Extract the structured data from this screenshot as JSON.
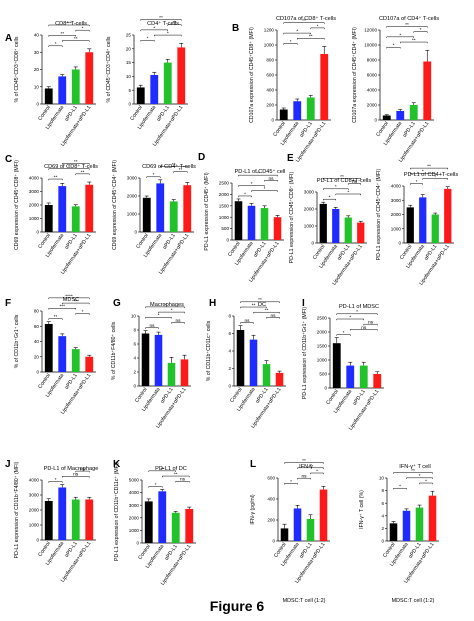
{
  "figure_title": "Figure 6",
  "colors": {
    "control": "#000000",
    "lipofermata": "#1f2bff",
    "apdl1": "#22c22a",
    "combo": "#ff1a1a"
  },
  "chart_data": [
    {
      "id": "A1",
      "panel": "A",
      "type": "bar",
      "title": "CD8⁺ T-cells",
      "ylabel": "% of CD45⁺CD3⁺CD8⁺ cells",
      "ylim": [
        0,
        40
      ],
      "yticks": [
        0,
        10,
        20,
        30,
        40
      ],
      "categories": [
        "Control",
        "Lipofermata",
        "αPD-L1",
        "Lipofermata+αPD-L1"
      ],
      "values": [
        9,
        16,
        20,
        30
      ],
      "errors": [
        1,
        1,
        1.5,
        2
      ],
      "sig": [
        {
          "from": 0,
          "to": 1,
          "label": "*"
        },
        {
          "from": 1,
          "to": 3,
          "label": "**"
        },
        {
          "from": 0,
          "to": 2,
          "label": "**"
        },
        {
          "from": 2,
          "to": 3,
          "label": "*"
        },
        {
          "from": 0,
          "to": 3,
          "label": "***"
        }
      ]
    },
    {
      "id": "A2",
      "panel": "",
      "type": "bar",
      "title": "CD4⁺ T-cells",
      "ylabel": "% of CD45⁺CD3⁺CD4⁺ cells",
      "ylim": [
        0,
        25
      ],
      "yticks": [
        0,
        5,
        10,
        15,
        20,
        25
      ],
      "categories": [
        "Control",
        "Lipofermata",
        "αPD-L1",
        "Lipofermata+αPD-L1"
      ],
      "values": [
        6,
        10.5,
        15,
        20.5
      ],
      "errors": [
        0.8,
        1,
        1.2,
        1.5
      ],
      "sig": [
        {
          "from": 0,
          "to": 1,
          "label": "*"
        },
        {
          "from": 1,
          "to": 3,
          "label": "*"
        },
        {
          "from": 0,
          "to": 2,
          "label": "*"
        },
        {
          "from": 2,
          "to": 3,
          "label": "**"
        },
        {
          "from": 0,
          "to": 3,
          "label": "**"
        }
      ]
    },
    {
      "id": "B1",
      "panel": "B",
      "type": "bar",
      "title": "CD107a of CD8⁺ T-cells",
      "ylabel": "CD107a expression of CD45⁺CD8⁺ (MFI)",
      "ylim": [
        0,
        1200
      ],
      "yticks": [
        0,
        200,
        400,
        600,
        800,
        1000,
        1200
      ],
      "categories": [
        "Control",
        "Lipofermata",
        "αPD-L1",
        "Lipofermata+αPD-L1"
      ],
      "values": [
        140,
        250,
        300,
        880
      ],
      "errors": [
        20,
        30,
        30,
        100
      ],
      "sig": [
        {
          "from": 0,
          "to": 1,
          "label": "*"
        },
        {
          "from": 1,
          "to": 3,
          "label": "**"
        },
        {
          "from": 0,
          "to": 2,
          "label": "*"
        },
        {
          "from": 2,
          "to": 3,
          "label": "*"
        },
        {
          "from": 0,
          "to": 3,
          "label": "**"
        }
      ]
    },
    {
      "id": "B2",
      "panel": "",
      "type": "bar",
      "title": "CD107a of CD4⁺ T-cells",
      "ylabel": "CD107a expression of CD45⁺CD4⁺ (MFI)",
      "ylim": [
        0,
        12000
      ],
      "yticks": [
        0,
        2000,
        4000,
        6000,
        8000,
        10000,
        12000
      ],
      "categories": [
        "Control",
        "Lipofermata",
        "αPD-L1",
        "Lipofermata+αPD-L1"
      ],
      "values": [
        600,
        1200,
        2000,
        7800
      ],
      "errors": [
        100,
        200,
        300,
        1500
      ],
      "sig": [
        {
          "from": 0,
          "to": 1,
          "label": "*"
        },
        {
          "from": 1,
          "to": 3,
          "label": "**"
        },
        {
          "from": 0,
          "to": 2,
          "label": "*"
        },
        {
          "from": 2,
          "to": 3,
          "label": "*"
        },
        {
          "from": 0,
          "to": 3,
          "label": "**"
        }
      ]
    },
    {
      "id": "C1",
      "panel": "C",
      "type": "bar",
      "title": "CD69 of CD8⁺ T-cells",
      "ylabel": "CD69 expression of CD45⁺CD8⁺ (MFI)",
      "ylim": [
        0,
        4000
      ],
      "yticks": [
        0,
        1000,
        2000,
        3000,
        4000
      ],
      "categories": [
        "Control",
        "Lipofermata",
        "αPD-L1",
        "Lipofermata+αPD-L1"
      ],
      "values": [
        2000,
        3400,
        1900,
        3500
      ],
      "errors": [
        150,
        200,
        120,
        200
      ],
      "sig": [
        {
          "from": 0,
          "to": 1,
          "label": "**"
        },
        {
          "from": 2,
          "to": 3,
          "label": "**"
        },
        {
          "from": 0,
          "to": 3,
          "label": "*"
        },
        {
          "from": 1,
          "to": 3,
          "label": "**"
        }
      ]
    },
    {
      "id": "C2",
      "panel": "",
      "type": "bar",
      "title": "CD69 of CD4⁺ T-cells",
      "ylabel": "CD69 expression of CD45⁺CD4⁺ (MFI)",
      "ylim": [
        0,
        3000
      ],
      "yticks": [
        0,
        1000,
        2000,
        3000
      ],
      "categories": [
        "Control",
        "Lipofermata",
        "αPD-L1",
        "Lipofermata+αPD-L1"
      ],
      "values": [
        1900,
        2700,
        1700,
        2600
      ],
      "errors": [
        100,
        200,
        100,
        150
      ],
      "sig": [
        {
          "from": 0,
          "to": 1,
          "label": "*"
        },
        {
          "from": 2,
          "to": 3,
          "label": "**"
        },
        {
          "from": 1,
          "to": 3,
          "label": "**"
        }
      ]
    },
    {
      "id": "D",
      "panel": "D",
      "type": "bar",
      "title": "PD-L1 of CD45⁺ cell",
      "ylabel": "PD-L1 expression of CD45⁺ (MFI)",
      "ylim": [
        0,
        2500
      ],
      "yticks": [
        0,
        500,
        1000,
        1500,
        2000,
        2500
      ],
      "categories": [
        "Control",
        "Lipofermata",
        "αPD-L1",
        "Lipofermata+αPD-L1"
      ],
      "values": [
        1700,
        1500,
        1400,
        1000
      ],
      "errors": [
        100,
        100,
        100,
        80
      ],
      "sig": [
        {
          "from": 0,
          "to": 1,
          "label": "*"
        },
        {
          "from": 1,
          "to": 3,
          "label": "*"
        },
        {
          "from": 0,
          "to": 2,
          "label": "*"
        },
        {
          "from": 2,
          "to": 3,
          "label": "ns"
        },
        {
          "from": 0,
          "to": 3,
          "label": "**"
        }
      ]
    },
    {
      "id": "E1",
      "panel": "E",
      "type": "bar",
      "title": "PD-L1 of CD8+T-cells",
      "ylabel": "PD-L1 expression of CD45⁺CD8⁺ (MFI)",
      "ylim": [
        0,
        3000
      ],
      "yticks": [
        0,
        1000,
        2000,
        3000
      ],
      "categories": [
        "Control",
        "Lipofermata",
        "αPD-L1",
        "Lipofermata+αPD-L1"
      ],
      "values": [
        2300,
        2000,
        1500,
        1200
      ],
      "errors": [
        100,
        100,
        100,
        80
      ],
      "sig": [
        {
          "from": 0,
          "to": 1,
          "label": "*"
        },
        {
          "from": 1,
          "to": 3,
          "label": "*"
        },
        {
          "from": 0,
          "to": 2,
          "label": "*"
        },
        {
          "from": 2,
          "to": 3,
          "label": "ns"
        },
        {
          "from": 0,
          "to": 3,
          "label": "**"
        }
      ]
    },
    {
      "id": "E2",
      "panel": "",
      "type": "bar",
      "title": "PD-L1 of CD4+T-cells",
      "ylabel": "PD-L1 expression of CD45⁺CD4⁺ (MFI)",
      "ylim": [
        0,
        4000
      ],
      "yticks": [
        0,
        1000,
        2000,
        3000,
        4000
      ],
      "categories": [
        "Control",
        "Lipofermata",
        "αPD-L1",
        "Lipofermata+αPD-L1"
      ],
      "values": [
        2500,
        3200,
        2000,
        3800
      ],
      "errors": [
        150,
        200,
        100,
        150
      ],
      "sig": [
        {
          "from": 0,
          "to": 1,
          "label": "*"
        },
        {
          "from": 1,
          "to": 3,
          "label": "*"
        },
        {
          "from": 0,
          "to": 2,
          "label": "*"
        },
        {
          "from": 0,
          "to": 3,
          "label": "**"
        }
      ]
    },
    {
      "id": "F",
      "panel": "F",
      "type": "bar",
      "title": "MDSC",
      "ylabel": "% of CD11b⁺Gr1⁺ cells",
      "ylim": [
        0,
        80
      ],
      "yticks": [
        0,
        20,
        40,
        60,
        80
      ],
      "categories": [
        "Control",
        "Lipofermata",
        "αPD-L1",
        "Lipofermata+αPD-L1"
      ],
      "values": [
        63,
        47,
        30,
        20
      ],
      "errors": [
        3,
        3,
        2,
        2
      ],
      "sig": [
        {
          "from": 0,
          "to": 1,
          "label": "**"
        },
        {
          "from": 2,
          "to": 3,
          "label": "*"
        },
        {
          "from": 0,
          "to": 2,
          "label": "***"
        },
        {
          "from": 1,
          "to": 3,
          "label": "**"
        },
        {
          "from": 0,
          "to": 3,
          "label": "****"
        }
      ]
    },
    {
      "id": "G",
      "panel": "G",
      "type": "bar",
      "title": "Macrophages",
      "ylabel": "% of CD11b⁺F4/80⁺ cells",
      "ylim": [
        0,
        10
      ],
      "yticks": [
        0,
        2,
        4,
        6,
        8,
        10
      ],
      "categories": [
        "Control",
        "Lipofermata",
        "αPD-L1",
        "Lipofermata+αPD-L1"
      ],
      "values": [
        7.5,
        7.3,
        3.3,
        3.8
      ],
      "errors": [
        0.4,
        0.4,
        0.8,
        0.6
      ],
      "sig": [
        {
          "from": 0,
          "to": 1,
          "label": "ns"
        },
        {
          "from": 2,
          "to": 3,
          "label": "ns"
        },
        {
          "from": 0,
          "to": 2,
          "label": "*"
        },
        {
          "from": 1,
          "to": 3,
          "label": "*"
        },
        {
          "from": 0,
          "to": 3,
          "label": "*"
        }
      ]
    },
    {
      "id": "H",
      "panel": "H",
      "type": "bar",
      "title": "DC",
      "ylabel": "% of CD11b⁺CD11c⁺ cells",
      "ylim": [
        0,
        8
      ],
      "yticks": [
        0,
        2,
        4,
        6,
        8
      ],
      "categories": [
        "Control",
        "Lipofermata",
        "αPD-L1",
        "Lipofermata+αPD-L1"
      ],
      "values": [
        6.4,
        5.3,
        2.5,
        1.5
      ],
      "errors": [
        0.5,
        0.5,
        0.4,
        0.2
      ],
      "sig": [
        {
          "from": 0,
          "to": 1,
          "label": "ns"
        },
        {
          "from": 2,
          "to": 3,
          "label": "ns"
        },
        {
          "from": 1,
          "to": 3,
          "label": "**"
        },
        {
          "from": 0,
          "to": 2,
          "label": "**"
        },
        {
          "from": 0,
          "to": 3,
          "label": "**"
        }
      ]
    },
    {
      "id": "I",
      "panel": "I",
      "type": "bar",
      "title": "PD-L1 of MDSC",
      "ylabel": "PD-L1 expression of CD11b⁺Gr1⁺ (MFI)",
      "ylim": [
        0,
        2500
      ],
      "yticks": [
        0,
        500,
        1000,
        1500,
        2000,
        2500
      ],
      "categories": [
        "Control",
        "Lipofermata",
        "αPD-L1",
        "Lipofermata+αPD-L1"
      ],
      "values": [
        1600,
        800,
        800,
        500
      ],
      "errors": [
        200,
        120,
        120,
        80
      ],
      "sig": [
        {
          "from": 0,
          "to": 1,
          "label": "*"
        },
        {
          "from": 1,
          "to": 3,
          "label": "ns"
        },
        {
          "from": 2,
          "to": 3,
          "label": "ns"
        },
        {
          "from": 0,
          "to": 2,
          "label": "*"
        },
        {
          "from": 0,
          "to": 3,
          "label": "*"
        }
      ]
    },
    {
      "id": "J",
      "panel": "J",
      "type": "bar",
      "title": "PD-L1 of Macrophage",
      "ylabel": "PD-L1 expression of CD11b⁺F4/80⁺ (MFI)",
      "ylim": [
        0,
        4000
      ],
      "yticks": [
        0,
        1000,
        2000,
        3000,
        4000
      ],
      "categories": [
        "Control",
        "Lipofermata",
        "αPD-L1",
        "Lipofermata+αPD-L1"
      ],
      "values": [
        2600,
        3500,
        2700,
        2700
      ],
      "errors": [
        150,
        200,
        150,
        150
      ],
      "sig": [
        {
          "from": 0,
          "to": 1,
          "label": "*"
        },
        {
          "from": 1,
          "to": 3,
          "label": "ns"
        },
        {
          "from": 2,
          "to": 3,
          "label": "ns"
        }
      ]
    },
    {
      "id": "K",
      "panel": "K",
      "type": "bar",
      "title": "PD-L1 of  DC",
      "ylabel": "PD-L1 expression of CD11b⁺CD11c⁺ (MFI)",
      "ylim": [
        0,
        5000
      ],
      "yticks": [
        0,
        1000,
        2000,
        3000,
        4000,
        5000
      ],
      "categories": [
        "Control",
        "Lipofermata",
        "αPD-L1",
        "Lipofermata+αPD-L1"
      ],
      "values": [
        3300,
        4100,
        2400,
        2700
      ],
      "errors": [
        200,
        150,
        100,
        150
      ],
      "sig": [
        {
          "from": 0,
          "to": 1,
          "label": "*"
        },
        {
          "from": 2,
          "to": 3,
          "label": "ns"
        },
        {
          "from": 1,
          "to": 3,
          "label": "**"
        },
        {
          "from": 0,
          "to": 2,
          "label": "**"
        }
      ]
    },
    {
      "id": "L1",
      "panel": "L",
      "type": "bar",
      "title": "IFN-γ",
      "ylabel": "IFN-γ (pg/ml)",
      "footer": "MDSC:T cell (1:2)",
      "ylim": [
        0,
        600
      ],
      "yticks": [
        0,
        200,
        400,
        600
      ],
      "categories": [
        "Control",
        "Lipofermata",
        "αPD-L1",
        "Lipofermata+αPD-L1"
      ],
      "values": [
        120,
        310,
        210,
        490
      ],
      "errors": [
        40,
        30,
        40,
        30
      ],
      "sig": [
        {
          "from": 0,
          "to": 1,
          "label": "*"
        },
        {
          "from": 1,
          "to": 2,
          "label": "ns"
        },
        {
          "from": 2,
          "to": 3,
          "label": "*"
        },
        {
          "from": 1,
          "to": 3,
          "label": "#"
        },
        {
          "from": 0,
          "to": 3,
          "label": "**"
        }
      ]
    },
    {
      "id": "L2",
      "panel": "",
      "type": "bar",
      "title": "IFN-γ⁺ T cell",
      "ylabel": "IFN-γ⁺ T cell (%)",
      "footer": "MDSC:T cell (1:2)",
      "ylim": [
        0,
        10
      ],
      "yticks": [
        0,
        2,
        4,
        6,
        8,
        10
      ],
      "categories": [
        "Control",
        "Lipofermata",
        "αPD-L1",
        "Lipofermata+αPD-L1"
      ],
      "values": [
        2.8,
        4.8,
        5.3,
        7.2
      ],
      "errors": [
        0.3,
        0.3,
        0.4,
        0.7
      ],
      "sig": [
        {
          "from": 0,
          "to": 1,
          "label": "*"
        },
        {
          "from": 2,
          "to": 3,
          "label": "*"
        },
        {
          "from": 1,
          "to": 3,
          "label": "*"
        },
        {
          "from": 0,
          "to": 3,
          "label": "**"
        }
      ]
    }
  ]
}
